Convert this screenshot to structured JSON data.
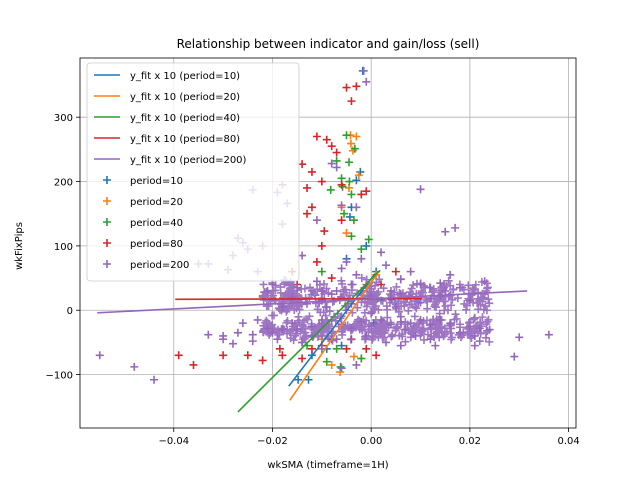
{
  "chart_data": {
    "type": "scatter",
    "title": "Relationship between indicator and gain/loss (sell)",
    "xlabel": "wkSMA (timeframe=1H)",
    "ylabel": "wkFixPips",
    "xlim": [
      -0.059,
      0.0415
    ],
    "ylim": [
      -183,
      392
    ],
    "xticks": [
      -0.04,
      -0.02,
      0.0,
      0.02,
      0.04
    ],
    "xtick_labels": [
      "−0.04",
      "−0.02",
      "0.00",
      "0.02",
      "0.04"
    ],
    "yticks": [
      -100,
      0,
      100,
      200,
      300
    ],
    "ytick_labels": [
      "−100",
      "0",
      "100",
      "200",
      "300"
    ],
    "grid": true,
    "legend_position": "upper-left",
    "fit_lines": [
      {
        "name": "y_fit x 10 (period=10)",
        "color": "#1f77b4",
        "x": [
          -0.0167,
          0.0008
        ],
        "y": [
          -118,
          57
        ]
      },
      {
        "name": "y_fit x 10 (period=20)",
        "color": "#ff7f0e",
        "x": [
          -0.0165,
          0.0015
        ],
        "y": [
          -140,
          60
        ]
      },
      {
        "name": "y_fit x 10 (period=40)",
        "color": "#2ca02c",
        "x": [
          -0.027,
          0.0018
        ],
        "y": [
          -158,
          62
        ]
      },
      {
        "name": "y_fit x 10 (period=80)",
        "color": "#d62728",
        "x": [
          -0.0397,
          0.0103
        ],
        "y": [
          17,
          18
        ]
      },
      {
        "name": "y_fit x 10 (period=200)",
        "color": "#9467bd",
        "x": [
          -0.0555,
          0.0316
        ],
        "y": [
          -4,
          30
        ]
      }
    ],
    "series": [
      {
        "name": "period=10",
        "color": "#1f77b4",
        "points": [
          [
            -0.0017,
            372
          ],
          [
            -0.0022,
            215
          ],
          [
            -0.003,
            202
          ],
          [
            -0.0043,
            145
          ],
          [
            -0.0127,
            -108
          ],
          [
            -0.0148,
            -108
          ],
          [
            -0.012,
            -70
          ],
          [
            -0.008,
            -45
          ],
          [
            -0.006,
            -55
          ],
          [
            -0.001,
            100
          ],
          [
            -0.004,
            160
          ],
          [
            0.001,
            60
          ],
          [
            -0.009,
            -60
          ],
          [
            -0.005,
            80
          ],
          [
            0.0005,
            -20
          ]
        ]
      },
      {
        "name": "period=20",
        "color": "#ff7f0e",
        "points": [
          [
            -0.0042,
            272
          ],
          [
            -0.0041,
            259
          ],
          [
            -0.0037,
            248
          ],
          [
            -0.003,
            270
          ],
          [
            -0.0045,
            190
          ],
          [
            -0.006,
            160
          ],
          [
            -0.0063,
            -96
          ],
          [
            -0.0035,
            -72
          ],
          [
            -0.01,
            -45
          ],
          [
            -0.002,
            -75
          ],
          [
            -0.014,
            -50
          ],
          [
            -0.008,
            -85
          ],
          [
            -0.001,
            40
          ],
          [
            0.001,
            55
          ],
          [
            -0.005,
            120
          ],
          [
            -0.0025,
            210
          ]
        ]
      },
      {
        "name": "period=40",
        "color": "#2ca02c",
        "points": [
          [
            -0.005,
            272
          ],
          [
            -0.0033,
            251
          ],
          [
            -0.007,
            232
          ],
          [
            -0.0045,
            230
          ],
          [
            -0.006,
            205
          ],
          [
            -0.0044,
            200
          ],
          [
            -0.0082,
            187
          ],
          [
            -0.0058,
            192
          ],
          [
            -0.004,
            180
          ],
          [
            -0.0055,
            150
          ],
          [
            -0.0035,
            140
          ],
          [
            -0.009,
            -80
          ],
          [
            -0.0062,
            -88
          ],
          [
            -0.007,
            -60
          ],
          [
            -0.002,
            -75
          ],
          [
            -0.013,
            -55
          ],
          [
            -0.004,
            115
          ],
          [
            -0.002,
            95
          ],
          [
            -0.0005,
            110
          ],
          [
            -0.01,
            60
          ]
        ]
      },
      {
        "name": "period=80",
        "color": "#d62728",
        "points": [
          [
            -0.003,
            348
          ],
          [
            -0.005,
            346
          ],
          [
            -0.004,
            325
          ],
          [
            -0.011,
            270
          ],
          [
            -0.009,
            265
          ],
          [
            -0.008,
            255
          ],
          [
            -0.007,
            245
          ],
          [
            -0.014,
            227
          ],
          [
            -0.012,
            215
          ],
          [
            -0.01,
            200
          ],
          [
            -0.013,
            190
          ],
          [
            -0.006,
            195
          ],
          [
            -0.002,
            180
          ],
          [
            -0.001,
            185
          ],
          [
            -0.012,
            160
          ],
          [
            -0.013,
            150
          ],
          [
            -0.006,
            140
          ],
          [
            -0.01,
            100
          ],
          [
            -0.0095,
            123
          ],
          [
            -0.03,
            -70
          ],
          [
            -0.025,
            -70
          ],
          [
            -0.022,
            -78
          ],
          [
            -0.018,
            -70
          ],
          [
            -0.039,
            -70
          ],
          [
            -0.036,
            -85
          ],
          [
            -0.014,
            -75
          ],
          [
            -0.012,
            -60
          ],
          [
            -0.01,
            -55
          ],
          [
            -0.005,
            -60
          ],
          [
            -0.001,
            -60
          ],
          [
            -0.004,
            -45
          ],
          [
            -0.015,
            40
          ],
          [
            -0.016,
            60
          ],
          [
            -0.008,
            50
          ],
          [
            0.002,
            40
          ],
          [
            0.005,
            60
          ],
          [
            -0.011,
            75
          ],
          [
            0.001,
            -70
          ],
          [
            -0.0185,
            -60
          ]
        ]
      },
      {
        "name": "period=200",
        "color": "#9467bd",
        "points": [
          [
            -0.0015,
            372
          ],
          [
            -0.001,
            355
          ],
          [
            -0.008,
            228
          ],
          [
            -0.007,
            222
          ],
          [
            -0.003,
            160
          ],
          [
            -0.018,
            195
          ],
          [
            -0.019,
            183
          ],
          [
            -0.024,
            187
          ],
          [
            -0.017,
            166
          ],
          [
            -0.018,
            134
          ],
          [
            -0.011,
            140
          ],
          [
            -0.006,
            163
          ],
          [
            0.01,
            188
          ],
          [
            0.015,
            122
          ],
          [
            0.017,
            128
          ],
          [
            -0.027,
            112
          ],
          [
            -0.026,
            105
          ],
          [
            -0.025,
            95
          ],
          [
            -0.022,
            100
          ],
          [
            -0.028,
            85
          ],
          [
            -0.033,
            72
          ],
          [
            -0.035,
            72
          ],
          [
            -0.029,
            63
          ],
          [
            -0.023,
            60
          ],
          [
            -0.014,
            85
          ],
          [
            -0.02,
            40
          ],
          [
            -0.021,
            30
          ],
          [
            -0.016,
            20
          ],
          [
            -0.012,
            30
          ],
          [
            -0.01,
            15
          ],
          [
            -0.008,
            25
          ],
          [
            -0.006,
            20
          ],
          [
            -0.004,
            10
          ],
          [
            -0.002,
            30
          ],
          [
            0.0,
            22
          ],
          [
            0.002,
            15
          ],
          [
            0.004,
            18
          ],
          [
            0.006,
            25
          ],
          [
            0.008,
            20
          ],
          [
            0.01,
            12
          ],
          [
            0.012,
            18
          ],
          [
            0.014,
            22
          ],
          [
            0.016,
            55
          ],
          [
            0.008,
            60
          ],
          [
            0.006,
            48
          ],
          [
            0.003,
            70
          ],
          [
            -0.003,
            55
          ],
          [
            -0.005,
            75
          ],
          [
            -0.002,
            80
          ],
          [
            0.002,
            90
          ],
          [
            -0.006,
            65
          ],
          [
            -0.011,
            45
          ],
          [
            -0.015,
            35
          ],
          [
            -0.018,
            5
          ],
          [
            0.01,
            40
          ],
          [
            0.012,
            35
          ],
          [
            0.014,
            42
          ],
          [
            -0.009,
            5
          ],
          [
            -0.005,
            0
          ],
          [
            0.0,
            -5
          ],
          [
            0.005,
            5
          ],
          [
            -0.013,
            10
          ],
          [
            -0.016,
            -20
          ],
          [
            -0.02,
            -35
          ],
          [
            -0.024,
            -38
          ],
          [
            -0.027,
            -35
          ],
          [
            -0.03,
            -40
          ],
          [
            -0.033,
            -38
          ],
          [
            -0.021,
            -28
          ],
          [
            -0.018,
            -30
          ],
          [
            -0.015,
            -30
          ],
          [
            -0.012,
            -25
          ],
          [
            -0.01,
            -20
          ],
          [
            -0.008,
            -15
          ],
          [
            -0.006,
            -22
          ],
          [
            -0.004,
            -28
          ],
          [
            -0.002,
            -18
          ],
          [
            0.0,
            -25
          ],
          [
            0.002,
            -15
          ],
          [
            0.004,
            -22
          ],
          [
            0.006,
            -18
          ],
          [
            0.008,
            -20
          ],
          [
            0.01,
            -15
          ],
          [
            0.012,
            -22
          ],
          [
            0.014,
            -15
          ],
          [
            0.016,
            -20
          ],
          [
            0.018,
            -35
          ],
          [
            0.02,
            -25
          ],
          [
            0.022,
            -28
          ],
          [
            0.024,
            -30
          ],
          [
            0.009,
            -40
          ],
          [
            0.006,
            -55
          ],
          [
            0.003,
            -50
          ],
          [
            0.012,
            -45
          ],
          [
            0.013,
            -55
          ],
          [
            -0.007,
            -45
          ],
          [
            -0.01,
            -60
          ],
          [
            -0.014,
            -50
          ],
          [
            -0.019,
            -45
          ],
          [
            -0.024,
            -48
          ],
          [
            -0.055,
            -70
          ],
          [
            -0.048,
            -88
          ],
          [
            -0.044,
            -108
          ],
          [
            -0.006,
            -90
          ],
          [
            -0.003,
            -85
          ],
          [
            -0.012,
            -40
          ],
          [
            0.036,
            -38
          ],
          [
            0.03,
            -42
          ],
          [
            0.022,
            -48
          ],
          [
            0.007,
            -30
          ],
          [
            0.021,
            -55
          ],
          [
            0.029,
            -72
          ],
          [
            0.021,
            -40
          ],
          [
            -0.001,
            -40
          ],
          [
            0.006,
            -10
          ],
          [
            -0.023,
            -15
          ],
          [
            -0.026,
            -20
          ],
          [
            0.015,
            30
          ],
          [
            0.018,
            35
          ],
          [
            0.023,
            45
          ],
          [
            -0.007,
            30
          ],
          [
            -0.004,
            40
          ],
          [
            -0.01,
            30
          ],
          [
            0.004,
            30
          ],
          [
            0.02,
            15
          ],
          [
            -0.03,
            -45
          ],
          [
            -0.028,
            -52
          ]
        ]
      }
    ]
  }
}
